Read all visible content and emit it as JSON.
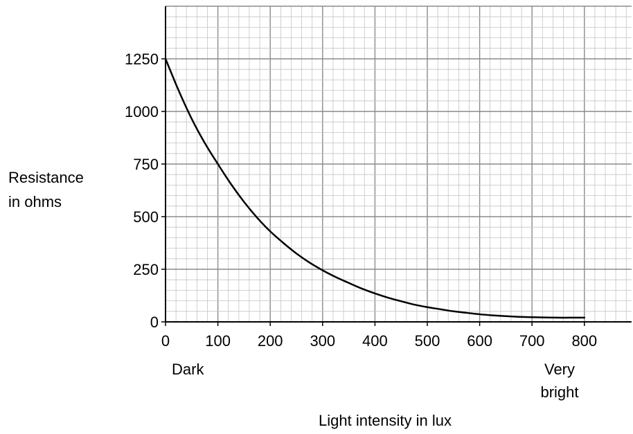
{
  "chart_data": {
    "type": "line",
    "title": "",
    "xlabel": "Light intensity in lux",
    "ylabel_lines": [
      "Resistance",
      "in ohms"
    ],
    "x_ticks": [
      0,
      100,
      200,
      300,
      400,
      500,
      600,
      700,
      800
    ],
    "y_ticks": [
      0,
      250,
      500,
      750,
      1000,
      1250
    ],
    "xlim": [
      0,
      890
    ],
    "ylim": [
      0,
      1500
    ],
    "grid": true,
    "x_annotations": {
      "dark": "Dark",
      "bright_lines": [
        "Very",
        "bright"
      ]
    },
    "series": [
      {
        "x": [
          0,
          25,
          50,
          75,
          100,
          125,
          150,
          175,
          200,
          225,
          250,
          275,
          300,
          325,
          350,
          375,
          400,
          425,
          450,
          475,
          500,
          525,
          550,
          575,
          600,
          625,
          650,
          675,
          700,
          725,
          750,
          775,
          800
        ],
        "y": [
          1250,
          1100,
          965,
          850,
          750,
          655,
          570,
          495,
          430,
          375,
          325,
          282,
          245,
          213,
          185,
          158,
          135,
          115,
          98,
          82,
          70,
          60,
          50,
          43,
          36,
          31,
          27,
          24,
          22,
          21,
          20,
          20,
          20
        ]
      }
    ]
  }
}
